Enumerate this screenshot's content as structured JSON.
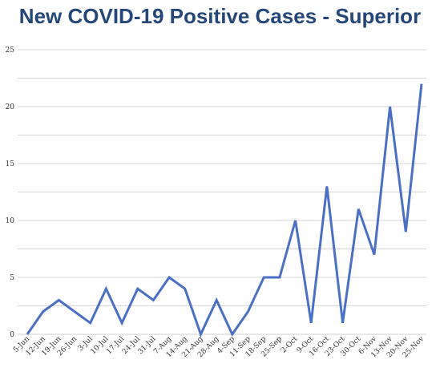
{
  "chart_data": {
    "type": "line",
    "title": "New COVID-19 Positive Cases - Superior",
    "xlabel": "",
    "ylabel": "",
    "ylim": [
      0,
      25
    ],
    "yticks": [
      0,
      5,
      10,
      15,
      20,
      25
    ],
    "grid": true,
    "legend": "none",
    "colors": {
      "line": "#4a70c6",
      "title": "#24477a",
      "grid": "#d6d6d6"
    },
    "x": [
      "5-Jun",
      "12-Jun",
      "19-Jun",
      "26-Jun",
      "3-Jul",
      "10-Jul",
      "17-Jul",
      "24-Jul",
      "31-Jul",
      "7-Aug",
      "14-Aug",
      "21-Aug",
      "28-Aug",
      "4-Sep",
      "11-Sep",
      "18-Sep",
      "25-Sep",
      "2-Oct",
      "9-Oct",
      "16-Oct",
      "23-Oct",
      "30-Oct",
      "6-Nov",
      "13-Nov",
      "20-Nov",
      "25-Nov"
    ],
    "series": [
      {
        "values": [
          0,
          2,
          3,
          2,
          1,
          4,
          1,
          4,
          3,
          5,
          4,
          0,
          3,
          0,
          2,
          5,
          5,
          10,
          1,
          13,
          1,
          11,
          7,
          20,
          9,
          22
        ]
      }
    ]
  }
}
